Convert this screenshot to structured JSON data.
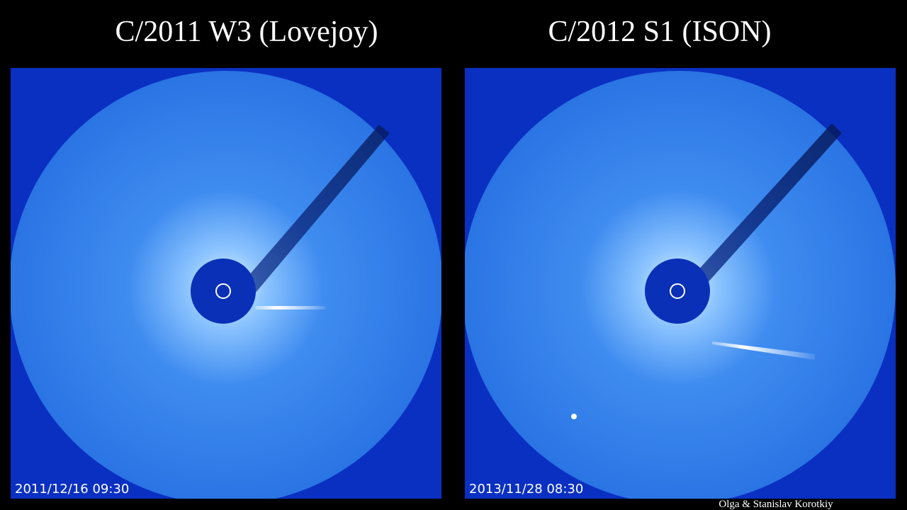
{
  "panels": [
    {
      "title": "C/2011 W3 (Lovejoy)",
      "timestamp": "2011/12/16 09:30"
    },
    {
      "title": "C/2012 S1 (ISON)",
      "timestamp": "2013/11/28 08:30"
    }
  ],
  "credit": "Olga & Stanislav Korotkiy"
}
